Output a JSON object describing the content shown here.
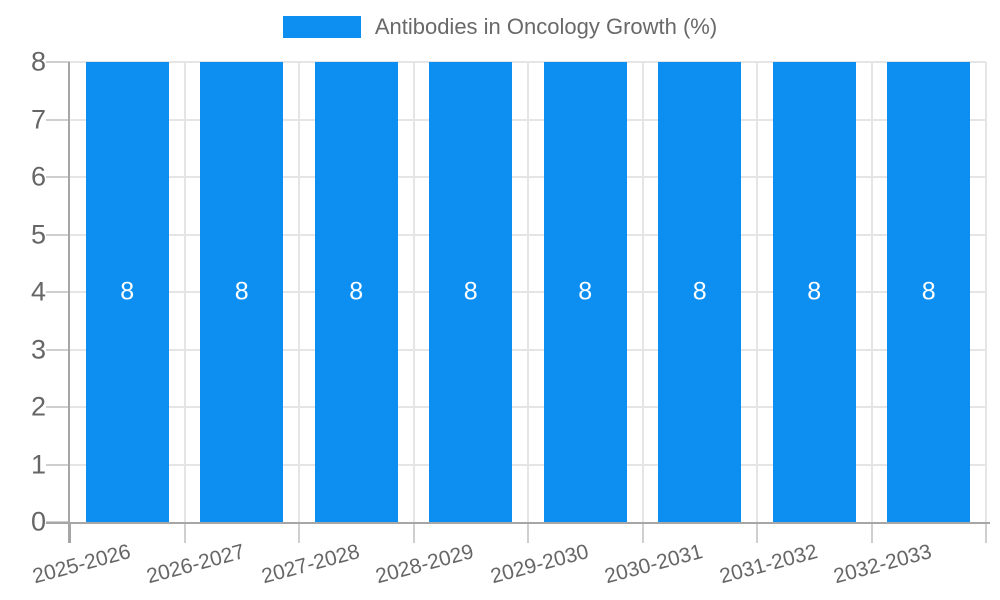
{
  "chart_data": {
    "type": "bar",
    "title": "Antibodies in Oncology Growth (%)",
    "legend": {
      "position": "top",
      "entries": [
        {
          "label": "Antibodies in Oncology Growth (%)",
          "color": "#0d8ff2"
        }
      ]
    },
    "categories": [
      "2025-2026",
      "2026-2027",
      "2027-2028",
      "2028-2029",
      "2029-2030",
      "2030-2031",
      "2031-2032",
      "2032-2033"
    ],
    "series": [
      {
        "name": "Antibodies in Oncology Growth (%)",
        "values": [
          8,
          8,
          8,
          8,
          8,
          8,
          8,
          8
        ]
      }
    ],
    "bar_value_labels": [
      "8",
      "8",
      "8",
      "8",
      "8",
      "8",
      "8",
      "8"
    ],
    "xlabel": "",
    "ylabel": "",
    "ylim": [
      0,
      8
    ],
    "yticks": [
      0,
      1,
      2,
      3,
      4,
      5,
      6,
      7,
      8
    ],
    "grid": true,
    "x_label_rotation_deg": -15,
    "colors": {
      "bar": "#0d8ff2",
      "bar_label": "#ffffff",
      "axis_line": "#a6a6a6",
      "gridline": "#e5e5e5",
      "tick_mark": "#cfcfcf",
      "tick_text": "#666666",
      "title_text": "#696969",
      "background": "#ffffff"
    }
  }
}
